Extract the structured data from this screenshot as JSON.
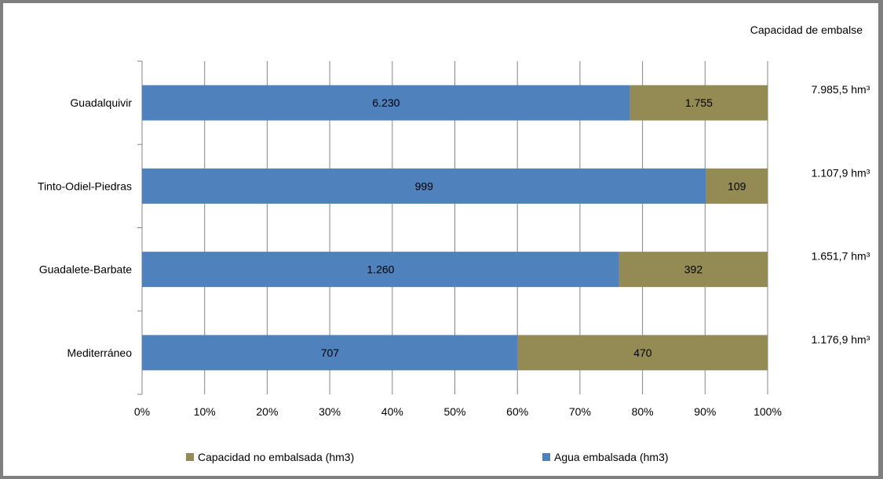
{
  "capacity_header": "Capacidad de embalse",
  "chart_data": {
    "type": "bar",
    "orientation": "horizontal",
    "stacked": "percent",
    "categories": [
      "Guadalquivir",
      "Tinto-Odiel-Piedras",
      "Guadalete-Barbate",
      "Mediterráneo"
    ],
    "series": [
      {
        "name": "Agua embalsada (hm3)",
        "values": [
          6230,
          999,
          1260,
          707
        ],
        "labels": [
          "6.230",
          "999",
          "1.260",
          "707"
        ],
        "color": "#4f81bd"
      },
      {
        "name": "Capacidad no embalsada  (hm3)",
        "values": [
          1755,
          109,
          392,
          470
        ],
        "labels": [
          "1.755",
          "109",
          "392",
          "470"
        ],
        "color": "#948a54"
      }
    ],
    "capacity_labels": [
      "7.985,5 hm³",
      "1.107,9 hm³",
      "1.651,7 hm³",
      "1.176,9 hm³"
    ],
    "x_ticks": [
      "0%",
      "10%",
      "20%",
      "30%",
      "40%",
      "50%",
      "60%",
      "70%",
      "80%",
      "90%",
      "100%"
    ],
    "xlim": [
      0,
      100
    ],
    "grid": "vertical",
    "legend_position": "bottom"
  }
}
